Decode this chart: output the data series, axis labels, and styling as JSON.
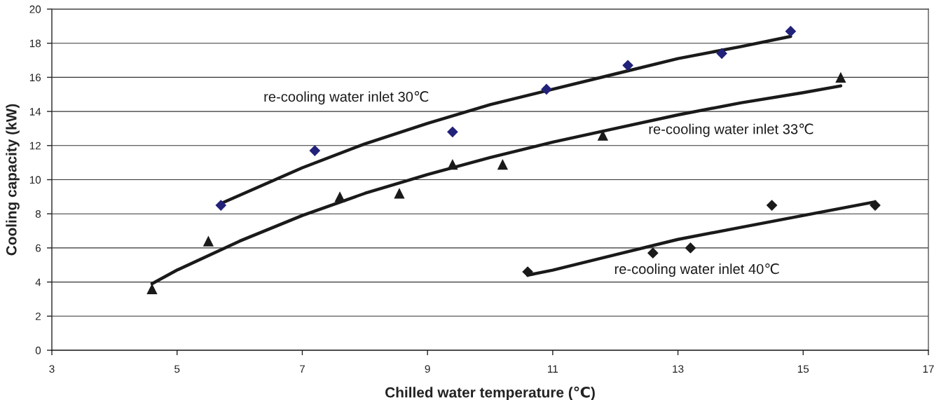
{
  "chart_data": {
    "type": "scatter",
    "xlabel": "Chilled water temperature (℃)",
    "ylabel": "Cooling capacity (kW)",
    "xlim": [
      3,
      17
    ],
    "xticks": [
      3,
      5,
      7,
      9,
      11,
      13,
      15,
      17
    ],
    "ylim": [
      0,
      20
    ],
    "yticks": [
      0,
      2,
      4,
      6,
      8,
      10,
      12,
      14,
      16,
      18,
      20
    ],
    "grid": "y",
    "series": [
      {
        "marker": "diamond",
        "color": "#22227a",
        "x": [
          5.7,
          7.2,
          9.4,
          10.9,
          12.2,
          13.7,
          14.8
        ],
        "values": [
          8.5,
          11.7,
          12.8,
          15.3,
          16.7,
          17.4,
          18.7
        ]
      },
      {
        "marker": "triangle",
        "color": "#1a1a1a",
        "x": [
          4.6,
          5.5,
          7.6,
          8.55,
          9.4,
          10.2,
          11.8,
          15.6
        ],
        "values": [
          3.6,
          6.4,
          9.0,
          9.2,
          10.9,
          10.9,
          12.6,
          16.0
        ]
      },
      {
        "marker": "diamond",
        "color": "#1a1a1a",
        "x": [
          10.6,
          12.6,
          13.2,
          14.5,
          16.15
        ],
        "values": [
          4.6,
          5.7,
          6.0,
          8.5,
          8.5
        ]
      },
      {
        "type": "line",
        "name": "re-cooling water inlet 30℃",
        "line_style": "solid",
        "color": "#1a1a1a",
        "x": [
          5.7,
          7,
          8,
          9,
          10,
          11,
          12,
          13,
          14,
          14.8
        ],
        "values": [
          8.6,
          10.7,
          12.1,
          13.3,
          14.4,
          15.3,
          16.2,
          17.1,
          17.8,
          18.4
        ]
      },
      {
        "type": "line",
        "name": "re-cooling water inlet 33℃",
        "line_style": "solid",
        "color": "#1a1a1a",
        "x": [
          4.6,
          5,
          6,
          7,
          8,
          9,
          10,
          11,
          12,
          13,
          14,
          15,
          15.6
        ],
        "values": [
          3.9,
          4.7,
          6.4,
          7.9,
          9.2,
          10.3,
          11.3,
          12.2,
          13.0,
          13.8,
          14.5,
          15.1,
          15.5
        ]
      },
      {
        "type": "line",
        "name": "re-cooling water inlet 40℃",
        "line_style": "solid",
        "color": "#1a1a1a",
        "x": [
          10.6,
          11,
          12,
          13,
          14,
          15,
          16.15
        ],
        "values": [
          4.4,
          4.7,
          5.6,
          6.5,
          7.2,
          7.9,
          8.7
        ]
      }
    ]
  }
}
